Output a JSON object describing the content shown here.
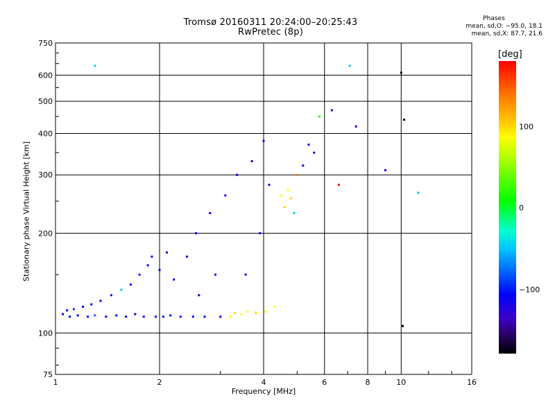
{
  "header": {
    "title_line1": "Tromsø 20160311 20:24:00–20:25:43",
    "title_line2": "RwPretec (8p)"
  },
  "phase_legend": {
    "title": "Phases",
    "line_o": "mean, sd,O: −95.0, 18.1",
    "line_x": "mean, sd,X:  87.7, 21.6"
  },
  "colorbar": {
    "unit": "[deg]",
    "ticks": [
      "100",
      "0",
      "−100"
    ],
    "top_color": "#ff0000",
    "bottom_color": "#000000"
  },
  "chart_data": {
    "type": "scatter",
    "xlabel": "Frequency [MHz]",
    "ylabel": "Stationary phase Virtual Height [km]",
    "x_scale": "log",
    "y_scale": "log",
    "xlim": [
      1,
      16
    ],
    "ylim": [
      75,
      750
    ],
    "x_ticks": [
      "1",
      "2",
      "4",
      "6",
      "8",
      "10",
      "16"
    ],
    "y_ticks": [
      "75",
      "100",
      "200",
      "300",
      "400",
      "500",
      "600",
      "750"
    ],
    "grid": true,
    "series": [
      {
        "points": [
          [
            1.05,
            114,
            "#0000ff"
          ],
          [
            1.08,
            117,
            "#0000ff"
          ],
          [
            1.1,
            112,
            "#0000ff"
          ],
          [
            1.13,
            118,
            "#1030ff"
          ],
          [
            1.16,
            113,
            "#0000ff"
          ],
          [
            1.2,
            120,
            "#0000ff"
          ],
          [
            1.24,
            112,
            "#0000ff"
          ],
          [
            1.27,
            122,
            "#0000ff"
          ],
          [
            1.3,
            113,
            "#2050ff"
          ],
          [
            1.35,
            125,
            "#0000ff"
          ],
          [
            1.4,
            112,
            "#0000ff"
          ],
          [
            1.45,
            130,
            "#0000ff"
          ],
          [
            1.5,
            113,
            "#0000ff"
          ],
          [
            1.55,
            135,
            "#00c8ff"
          ],
          [
            1.6,
            112,
            "#0000ff"
          ],
          [
            1.65,
            140,
            "#0000ff"
          ],
          [
            1.7,
            114,
            "#0000ff"
          ],
          [
            1.75,
            150,
            "#0000ff"
          ],
          [
            1.8,
            112,
            "#0000ff"
          ],
          [
            1.85,
            160,
            "#0000ff"
          ],
          [
            1.9,
            170,
            "#0000ff"
          ],
          [
            1.95,
            112,
            "#0000ff"
          ],
          [
            2.0,
            155,
            "#0000ff"
          ],
          [
            2.05,
            112,
            "#0000ff"
          ],
          [
            2.1,
            175,
            "#0000ff"
          ],
          [
            2.15,
            113,
            "#0000ff"
          ],
          [
            2.2,
            145,
            "#0000ff"
          ],
          [
            2.3,
            112,
            "#0000ff"
          ],
          [
            2.4,
            170,
            "#0000ff"
          ],
          [
            2.5,
            112,
            "#0000ff"
          ],
          [
            2.55,
            200,
            "#0000ff"
          ],
          [
            2.6,
            130,
            "#0000ff"
          ],
          [
            2.7,
            112,
            "#0000ff"
          ],
          [
            2.8,
            230,
            "#0000ff"
          ],
          [
            2.9,
            150,
            "#0000ff"
          ],
          [
            3.0,
            112,
            "#0000ff"
          ],
          [
            3.1,
            260,
            "#0000ff"
          ],
          [
            3.2,
            112,
            "#ffff00"
          ],
          [
            3.3,
            115,
            "#ffd400"
          ],
          [
            3.35,
            300,
            "#0000ff"
          ],
          [
            3.45,
            114,
            "#ffff00"
          ],
          [
            3.55,
            150,
            "#0000ff"
          ],
          [
            3.6,
            116,
            "#ffff00"
          ],
          [
            3.7,
            330,
            "#0000ff"
          ],
          [
            3.8,
            115,
            "#ffd400"
          ],
          [
            3.9,
            200,
            "#0000ff"
          ],
          [
            4.0,
            380,
            "#0000ff"
          ],
          [
            4.05,
            116,
            "#ffff00"
          ],
          [
            4.15,
            280,
            "#0000ff"
          ],
          [
            4.3,
            120,
            "#ffff00"
          ],
          [
            4.5,
            260,
            "#ffff00"
          ],
          [
            4.6,
            240,
            "#ffd400"
          ],
          [
            4.7,
            270,
            "#ffff00"
          ],
          [
            4.8,
            255,
            "#ffd400"
          ],
          [
            4.9,
            230,
            "#00c8ff"
          ],
          [
            5.0,
            300,
            "#ff7a00"
          ],
          [
            5.2,
            320,
            "#0000ff"
          ],
          [
            5.4,
            370,
            "#0000ff"
          ],
          [
            5.6,
            350,
            "#0000ff"
          ],
          [
            5.8,
            450,
            "#00ff00"
          ],
          [
            6.3,
            470,
            "#0000ff"
          ],
          [
            6.6,
            280,
            "#ff0000"
          ],
          [
            7.1,
            640,
            "#00c8ff"
          ],
          [
            7.4,
            420,
            "#0000ff"
          ],
          [
            9.0,
            310,
            "#0000ff"
          ],
          [
            10.0,
            610,
            "#000000"
          ],
          [
            10.1,
            105,
            "#000000"
          ],
          [
            10.2,
            440,
            "#000000"
          ],
          [
            11.2,
            265,
            "#00c8ff"
          ],
          [
            1.3,
            640,
            "#00c8ff"
          ]
        ]
      }
    ]
  }
}
